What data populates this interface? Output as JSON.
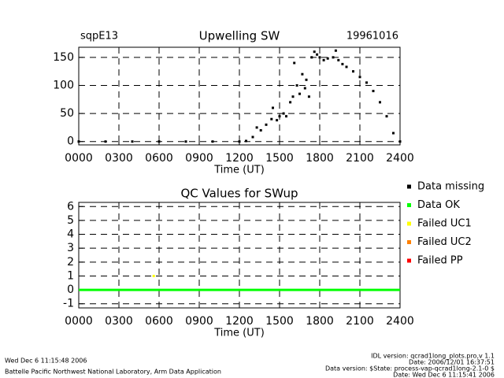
{
  "chart_data": [
    {
      "type": "scatter",
      "title": "Upwelling SW",
      "annotations": [
        "sqpE13",
        "19961016"
      ],
      "x_label": "Time (UT)",
      "xlim": [
        0,
        24
      ],
      "xticks": [
        {
          "value": 0,
          "label": "0000"
        },
        {
          "value": 3,
          "label": "0300"
        },
        {
          "value": 6,
          "label": "0600"
        },
        {
          "value": 9,
          "label": "0900"
        },
        {
          "value": 12,
          "label": "1200"
        },
        {
          "value": 15,
          "label": "1500"
        },
        {
          "value": 18,
          "label": "1800"
        },
        {
          "value": 21,
          "label": "2100"
        },
        {
          "value": 24,
          "label": "2400"
        }
      ],
      "ylim": [
        -6,
        168
      ],
      "yticks": [
        0,
        50,
        100,
        150
      ],
      "grid": true,
      "series": [
        {
          "color": "#000000",
          "mode": "points",
          "x": [
            0,
            2,
            4,
            6,
            8,
            10,
            12,
            12.5,
            13,
            13.3,
            13.6,
            14,
            14.4,
            14.5,
            14.8,
            15,
            15.3,
            15.5,
            15.8,
            16,
            16.1,
            16.3,
            16.5,
            16.7,
            16.9,
            17,
            17.2,
            17.4,
            17.6,
            17.8,
            18,
            18.3,
            18.6,
            19,
            19.2,
            19.4,
            19.7,
            20,
            20.5,
            21,
            21.5,
            22,
            22.5,
            23,
            23.5,
            24
          ],
          "values": [
            0,
            0,
            0,
            0,
            0,
            0,
            0,
            1,
            8,
            25,
            20,
            30,
            40,
            60,
            38,
            45,
            50,
            45,
            70,
            80,
            140,
            100,
            85,
            120,
            95,
            110,
            80,
            150,
            160,
            155,
            150,
            145,
            148,
            150,
            162,
            145,
            138,
            133,
            125,
            115,
            105,
            90,
            70,
            45,
            15,
            0
          ]
        }
      ]
    },
    {
      "type": "scatter",
      "title": "QC Values for SWup",
      "x_label": "Time (UT)",
      "xlim": [
        0,
        24
      ],
      "xticks": [
        {
          "value": 0,
          "label": "0000"
        },
        {
          "value": 3,
          "label": "0300"
        },
        {
          "value": 6,
          "label": "0600"
        },
        {
          "value": 9,
          "label": "0900"
        },
        {
          "value": 12,
          "label": "1200"
        },
        {
          "value": 15,
          "label": "1500"
        },
        {
          "value": 18,
          "label": "1800"
        },
        {
          "value": 21,
          "label": "2100"
        },
        {
          "value": 24,
          "label": "2400"
        }
      ],
      "ylim": [
        -1.3,
        6.3
      ],
      "yticks": [
        -1,
        0,
        1,
        2,
        3,
        4,
        5,
        6
      ],
      "grid": true,
      "series": [
        {
          "name": "Data missing",
          "color": "#000000",
          "mode": "points",
          "x": [],
          "values": []
        },
        {
          "name": "Data OK",
          "color": "#00ff00",
          "mode": "line",
          "x": [
            0,
            24
          ],
          "values": [
            0,
            0
          ]
        },
        {
          "name": "Failed UC1",
          "color": "#ffff00",
          "mode": "points",
          "x": [
            5.6
          ],
          "values": [
            1
          ]
        },
        {
          "name": "Failed UC2",
          "color": "#ff8000",
          "mode": "points",
          "x": [],
          "values": []
        },
        {
          "name": "Failed PP",
          "color": "#ff0000",
          "mode": "points",
          "x": [],
          "values": []
        }
      ]
    }
  ],
  "footer": {
    "left": [
      "Wed Dec  6 11:15:48 2006",
      "Battelle Pacific Northwest National Laboratory, Arm Data Application"
    ],
    "right": [
      "IDL version: qcrad1long_plots.pro,v 1.1",
      "Date: 2006/12/01 16:37:51",
      "Data version: $State: process-vap-qcrad1long-2.1-0 $",
      "Date: Wed Dec  6 11:15:41 2006"
    ]
  }
}
